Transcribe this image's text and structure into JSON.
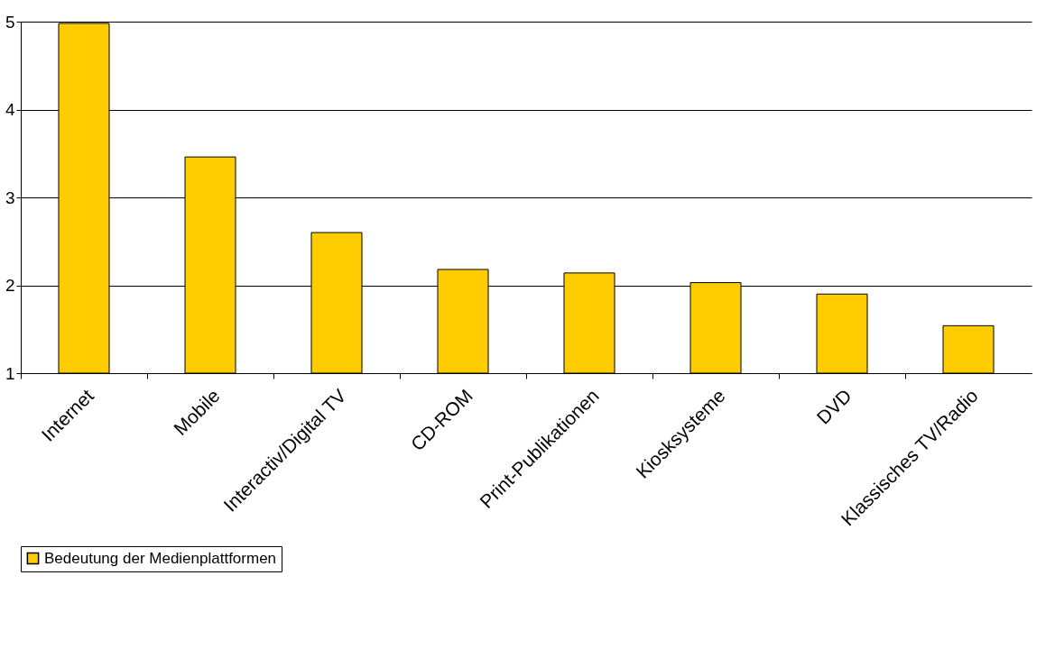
{
  "chart_data": {
    "type": "bar",
    "categories": [
      "Internet",
      "Mobile",
      "Interactiv/Digital TV",
      "CD-ROM",
      "Print-Publikationen",
      "Kiosksysteme",
      "DVD",
      "Klassisches TV/Radio"
    ],
    "series": [
      {
        "name": "Bedeutung der Medienplattformen",
        "color": "#ffcc00",
        "values": [
          4.98,
          3.46,
          2.6,
          2.18,
          2.14,
          2.03,
          1.9,
          1.54
        ]
      }
    ],
    "ylim": [
      1,
      5
    ],
    "yticks": [
      1,
      2,
      3,
      4,
      5
    ],
    "grid": "y",
    "legend": "bottom"
  }
}
